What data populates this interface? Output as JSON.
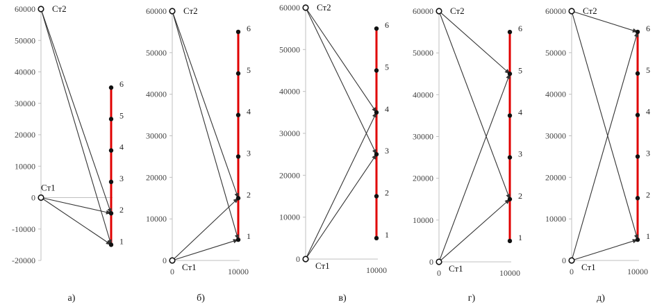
{
  "chart_data": [
    {
      "type": "scatter",
      "caption": "а)",
      "ylim": [
        -20000,
        60000
      ],
      "yticks": [
        -20000,
        -10000,
        0,
        10000,
        20000,
        30000,
        40000,
        50000,
        60000
      ],
      "ytick_labels": [
        "-20000",
        "-10000",
        "0",
        "10000",
        "20000",
        "30000",
        "40000",
        "50000",
        "60000"
      ],
      "xticks": [],
      "xtick_labels": [],
      "stations": [
        {
          "label": "Ст1",
          "x": 0,
          "y": 0
        },
        {
          "label": "Ст2",
          "x": 0,
          "y": 60000
        }
      ],
      "points": [
        {
          "label": "1",
          "x": 10000,
          "y": -15000
        },
        {
          "label": "2",
          "x": 10000,
          "y": -5000
        },
        {
          "label": "3",
          "x": 10000,
          "y": 5000
        },
        {
          "label": "4",
          "x": 10000,
          "y": 15000
        },
        {
          "label": "5",
          "x": 10000,
          "y": 25000
        },
        {
          "label": "6",
          "x": 10000,
          "y": 35000
        }
      ],
      "arrows": [
        {
          "from": "Ст1",
          "to": "1"
        },
        {
          "from": "Ст1",
          "to": "2"
        },
        {
          "from": "Ст2",
          "to": "1"
        },
        {
          "from": "Ст2",
          "to": "2"
        }
      ]
    },
    {
      "type": "scatter",
      "caption": "б)",
      "ylim": [
        0,
        60000
      ],
      "yticks": [
        0,
        10000,
        20000,
        30000,
        40000,
        50000,
        60000
      ],
      "ytick_labels": [
        "0",
        "10000",
        "20000",
        "30000",
        "40000",
        "50000",
        "60000"
      ],
      "xticks": [
        0,
        10000
      ],
      "xtick_labels": [
        "0",
        "10000"
      ],
      "stations": [
        {
          "label": "Ст1",
          "x": 0,
          "y": 0
        },
        {
          "label": "Ст2",
          "x": 0,
          "y": 60000
        }
      ],
      "points": [
        {
          "label": "1",
          "x": 10000,
          "y": 5000
        },
        {
          "label": "2",
          "x": 10000,
          "y": 15000
        },
        {
          "label": "3",
          "x": 10000,
          "y": 25000
        },
        {
          "label": "4",
          "x": 10000,
          "y": 35000
        },
        {
          "label": "5",
          "x": 10000,
          "y": 45000
        },
        {
          "label": "6",
          "x": 10000,
          "y": 55000
        }
      ],
      "arrows": [
        {
          "from": "Ст1",
          "to": "1"
        },
        {
          "from": "Ст1",
          "to": "2"
        },
        {
          "from": "Ст2",
          "to": "1"
        },
        {
          "from": "Ст2",
          "to": "2"
        }
      ]
    },
    {
      "type": "scatter",
      "caption": "в)",
      "ylim": [
        0,
        60000
      ],
      "yticks": [
        0,
        10000,
        20000,
        30000,
        40000,
        50000,
        60000
      ],
      "ytick_labels": [
        "0",
        "10000",
        "20000",
        "30000",
        "40000",
        "50000",
        "60000"
      ],
      "xticks": [
        10000
      ],
      "xtick_labels": [
        "10000"
      ],
      "stations": [
        {
          "label": "Ст1",
          "x": 0,
          "y": 0
        },
        {
          "label": "Ст2",
          "x": 0,
          "y": 60000
        }
      ],
      "points": [
        {
          "label": "1",
          "x": 10000,
          "y": 5000
        },
        {
          "label": "2",
          "x": 10000,
          "y": 15000
        },
        {
          "label": "3",
          "x": 10000,
          "y": 25000
        },
        {
          "label": "4",
          "x": 10000,
          "y": 35000
        },
        {
          "label": "5",
          "x": 10000,
          "y": 45000
        },
        {
          "label": "6",
          "x": 10000,
          "y": 55000
        }
      ],
      "arrows": [
        {
          "from": "Ст1",
          "to": "3"
        },
        {
          "from": "Ст1",
          "to": "4"
        },
        {
          "from": "Ст2",
          "to": "3"
        },
        {
          "from": "Ст2",
          "to": "4"
        }
      ]
    },
    {
      "type": "scatter",
      "caption": "г)",
      "ylim": [
        0,
        60000
      ],
      "yticks": [
        0,
        10000,
        20000,
        30000,
        40000,
        50000,
        60000
      ],
      "ytick_labels": [
        "0",
        "10000",
        "20000",
        "30000",
        "40000",
        "50000",
        "60000"
      ],
      "xticks": [
        0,
        10000
      ],
      "xtick_labels": [
        "0",
        "10000"
      ],
      "stations": [
        {
          "label": "Ст1",
          "x": 0,
          "y": 0
        },
        {
          "label": "Ст2",
          "x": 0,
          "y": 60000
        }
      ],
      "points": [
        {
          "label": "1",
          "x": 10000,
          "y": 5000
        },
        {
          "label": "2",
          "x": 10000,
          "y": 15000
        },
        {
          "label": "3",
          "x": 10000,
          "y": 25000
        },
        {
          "label": "4",
          "x": 10000,
          "y": 35000
        },
        {
          "label": "5",
          "x": 10000,
          "y": 45000
        },
        {
          "label": "6",
          "x": 10000,
          "y": 55000
        }
      ],
      "arrows": [
        {
          "from": "Ст1",
          "to": "2"
        },
        {
          "from": "Ст1",
          "to": "5"
        },
        {
          "from": "Ст2",
          "to": "2"
        },
        {
          "from": "Ст2",
          "to": "5"
        }
      ]
    },
    {
      "type": "scatter",
      "caption": "д)",
      "ylim": [
        0,
        60000
      ],
      "yticks": [
        0,
        10000,
        20000,
        30000,
        40000,
        50000,
        60000
      ],
      "ytick_labels": [
        "0",
        "10000",
        "20000",
        "30000",
        "40000",
        "50000",
        "60000"
      ],
      "xticks": [
        0,
        10000
      ],
      "xtick_labels": [
        "0",
        "10000"
      ],
      "stations": [
        {
          "label": "Ст1",
          "x": 0,
          "y": 0
        },
        {
          "label": "Ст2",
          "x": 0,
          "y": 60000
        }
      ],
      "points": [
        {
          "label": "1",
          "x": 10000,
          "y": 5000
        },
        {
          "label": "2",
          "x": 10000,
          "y": 15000
        },
        {
          "label": "3",
          "x": 10000,
          "y": 25000
        },
        {
          "label": "4",
          "x": 10000,
          "y": 35000
        },
        {
          "label": "5",
          "x": 10000,
          "y": 45000
        },
        {
          "label": "6",
          "x": 10000,
          "y": 55000
        }
      ],
      "arrows": [
        {
          "from": "Ст1",
          "to": "1"
        },
        {
          "from": "Ст1",
          "to": "6"
        },
        {
          "from": "Ст2",
          "to": "1"
        },
        {
          "from": "Ст2",
          "to": "6"
        }
      ]
    }
  ],
  "colors": {
    "segment": "#e00000",
    "arrow": "#333333",
    "axis": "#bfbfbf",
    "point": "#111111"
  }
}
